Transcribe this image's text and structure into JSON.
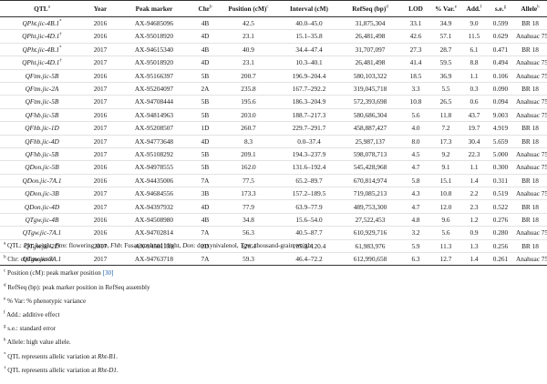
{
  "header": {
    "qtl": "QTL",
    "qtl_mark": "a",
    "year": "Year",
    "peak": "Peak marker",
    "chr": "Chr",
    "chr_mark": "b",
    "pos": "Position (cM)",
    "pos_mark": "c",
    "interval": "Interval (cM)",
    "refseq": "RefSeq (bp)",
    "refseq_mark": "d",
    "lod": "LOD",
    "var": "% Var.",
    "var_mark": "e",
    "add": "Add.",
    "add_mark": "f",
    "se": "s.e.",
    "se_mark": "g",
    "allele": "Allele",
    "allele_mark": "h"
  },
  "rows": [
    {
      "qtl": "QPht.jic-4B.1",
      "mark": "*",
      "year": "2016",
      "peak": "AX-94685096",
      "chr": "4B",
      "pos": "42.5",
      "interval": "40.0–45.0",
      "refseq": "31,875,304",
      "lod": "33.1",
      "var": "34.9",
      "add": "9.0",
      "se": "0.599",
      "allele": "BR 18"
    },
    {
      "qtl": "QPht.jic-4D.1",
      "mark": "†",
      "year": "2016",
      "peak": "AX-95018920",
      "chr": "4D",
      "pos": "23.1",
      "interval": "15.1–35.8",
      "refseq": "26,481,498",
      "lod": "42.6",
      "var": "57.1",
      "add": "11.5",
      "se": "0.629",
      "allele": "Anahuac 75"
    },
    {
      "qtl": "QPht.jic-4B.1",
      "mark": "*",
      "year": "2017",
      "peak": "AX-94615340",
      "chr": "4B",
      "pos": "40.9",
      "interval": "34.4–47.4",
      "refseq": "31,707,097",
      "lod": "27.3",
      "var": "28.7",
      "add": "6.1",
      "se": "0.471",
      "allele": "BR 18"
    },
    {
      "qtl": "QPht.jic-4D.1",
      "mark": "†",
      "year": "2017",
      "peak": "AX-95018920",
      "chr": "4D",
      "pos": "23.1",
      "interval": "10.3–40.1",
      "refseq": "26,481,498",
      "lod": "41.4",
      "var": "59.5",
      "add": "8.8",
      "se": "0.494",
      "allele": "Anahuac 75"
    },
    {
      "qtl": "QFtm.jic-5B",
      "mark": "",
      "year": "2016",
      "peak": "AX-95166397",
      "chr": "5B",
      "pos": "200.7",
      "interval": "196.9–204.4",
      "refseq": "580,103,322",
      "lod": "18.5",
      "var": "36.9",
      "add": "1.1",
      "se": "0.106",
      "allele": "Anahuac 75"
    },
    {
      "qtl": "QFtm.jic-2A",
      "mark": "",
      "year": "2017",
      "peak": "AX-95204097",
      "chr": "2A",
      "pos": "235.8",
      "interval": "167.7–292.2",
      "refseq": "319,045,718",
      "lod": "3.3",
      "var": "5.5",
      "add": "0.3",
      "se": "0.090",
      "allele": "BR 18"
    },
    {
      "qtl": "QFtm.jic-5B",
      "mark": "",
      "year": "2017",
      "peak": "AX-94708444",
      "chr": "5B",
      "pos": "195.6",
      "interval": "186.3–204.9",
      "refseq": "572,393,698",
      "lod": "10.8",
      "var": "26.5",
      "add": "0.6",
      "se": "0.094",
      "allele": "Anahuac 75"
    },
    {
      "qtl": "QFhb.jic-5B",
      "mark": "",
      "year": "2016",
      "peak": "AX-94814963",
      "chr": "5B",
      "pos": "203.0",
      "interval": "188.7–217.3",
      "refseq": "580,686,304",
      "lod": "5.6",
      "var": "11.8",
      "add": "43.7",
      "se": "9.003",
      "allele": "Anahuac 75"
    },
    {
      "qtl": "QFhb.jic-1D",
      "mark": "",
      "year": "2017",
      "peak": "AX-95208507",
      "chr": "1D",
      "pos": "260.7",
      "interval": "229.7–291.7",
      "refseq": "458,887,427",
      "lod": "4.0",
      "var": "7.2",
      "add": "19.7",
      "se": "4.919",
      "allele": "BR 18"
    },
    {
      "qtl": "QFhb.jic-4D",
      "mark": "",
      "year": "2017",
      "peak": "AX-94773648",
      "chr": "4D",
      "pos": "8.3",
      "interval": "0.0–37.4",
      "refseq": "25,987,137",
      "lod": "8.0",
      "var": "17.3",
      "add": "30.4",
      "se": "5.659",
      "allele": "BR 18"
    },
    {
      "qtl": "QFhb.jic-5B",
      "mark": "",
      "year": "2017",
      "peak": "AX-95108292",
      "chr": "5B",
      "pos": "209.1",
      "interval": "194.3–237.9",
      "refseq": "598,078,713",
      "lod": "4.5",
      "var": "9.2",
      "add": "22.3",
      "se": "5.000",
      "allele": "Anahuac 75"
    },
    {
      "qtl": "QDon.jic-5B",
      "mark": "",
      "year": "2016",
      "peak": "AX-94978555",
      "chr": "5B",
      "pos": "162.0",
      "interval": "131.6–192.4",
      "refseq": "545,428,968",
      "lod": "4.7",
      "var": "9.1",
      "add": "1.1",
      "se": "0.300",
      "allele": "Anahuac 75"
    },
    {
      "qtl": "QDon.jic-7A.1",
      "mark": "",
      "year": "2016",
      "peak": "AX-94435006",
      "chr": "7A",
      "pos": "77.5",
      "interval": "65.2–89.7",
      "refseq": "670,814,974",
      "lod": "5.8",
      "var": "15.1",
      "add": "1.4",
      "se": "0.311",
      "allele": "BR 18"
    },
    {
      "qtl": "QDon.jic-3B",
      "mark": "",
      "year": "2017",
      "peak": "AX-94684556",
      "chr": "3B",
      "pos": "173.3",
      "interval": "157.2–189.5",
      "refseq": "719,085,213",
      "lod": "4.3",
      "var": "10.8",
      "add": "2.2",
      "se": "0.519",
      "allele": "Anahuac 75"
    },
    {
      "qtl": "QDon.jic-4D",
      "mark": "",
      "year": "2017",
      "peak": "AX-94397932",
      "chr": "4D",
      "pos": "77.9",
      "interval": "63.9–77.9",
      "refseq": "489,753,300",
      "lod": "4.7",
      "var": "12.0",
      "add": "2.3",
      "se": "0.522",
      "allele": "BR 18"
    },
    {
      "qtl": "QTgw.jic-4B",
      "mark": "",
      "year": "2016",
      "peak": "AX-94508980",
      "chr": "4B",
      "pos": "34.8",
      "interval": "15.6–54.0",
      "refseq": "27,522,453",
      "lod": "4.8",
      "var": "9.6",
      "add": "1.2",
      "se": "0.276",
      "allele": "BR 18"
    },
    {
      "qtl": "QTgw.jic-7A.1",
      "mark": "",
      "year": "2016",
      "peak": "AX-94702814",
      "chr": "7A",
      "pos": "56.3",
      "interval": "40.5–87.7",
      "refseq": "610,929,716",
      "lod": "3.2",
      "var": "5.6",
      "add": "0.9",
      "se": "0.280",
      "allele": "Anahuac 75"
    },
    {
      "qtl": "QTgw.jic-2D",
      "mark": "",
      "year": "2017",
      "peak": "AX-94501139",
      "chr": "2D",
      "pos": "120.4",
      "interval": "105.3–120.4",
      "refseq": "61,983,976",
      "lod": "5.9",
      "var": "11.3",
      "add": "1.3",
      "se": "0.256",
      "allele": "BR 18"
    },
    {
      "qtl": "QTgw.jic-7A.1",
      "mark": "",
      "year": "2017",
      "peak": "AX-94763718",
      "chr": "7A",
      "pos": "59.3",
      "interval": "46.4–72.2",
      "refseq": "612,990,658",
      "lod": "6.3",
      "var": "12.7",
      "add": "1.4",
      "se": "0.261",
      "allele": "Anahuac 75"
    }
  ],
  "notes": {
    "a": {
      "mark": "a",
      "prefix": "QTL: ",
      "t1": "Pht",
      "s1": ": height, ",
      "t2": "Ftm",
      "s2": ": flowering time, ",
      "t3": "Fhb",
      "s3": ": Fusarium head blight, ",
      "t4": "Don",
      "s4": ": deoxynivalenol, ",
      "t5": "Tgw",
      "s5": ": thousand-grain weight"
    },
    "b": {
      "mark": "b",
      "text": "Chr: chromosome"
    },
    "c": {
      "mark": "c",
      "text": "Position (cM): peak marker position ",
      "ref": "[30]"
    },
    "d": {
      "mark": "d",
      "text": "RefSeq (bp): peak marker position in RefSeq assembly"
    },
    "e": {
      "mark": "e",
      "text": "% Var: % phenotypic variance"
    },
    "f": {
      "mark": "f",
      "text": "Add.: additive effect"
    },
    "g": {
      "mark": "g",
      "text": "s.e.: standard error"
    },
    "h": {
      "mark": "h",
      "text": "Allele: high value allele."
    },
    "star": {
      "mark": "*",
      "text": "QTL represents allelic variation at ",
      "gene": "Rht-B1",
      "end": "."
    },
    "dagger": {
      "mark": "†",
      "text": "QTL represents allelic variation at ",
      "gene": "Rht-D1",
      "end": "."
    }
  }
}
